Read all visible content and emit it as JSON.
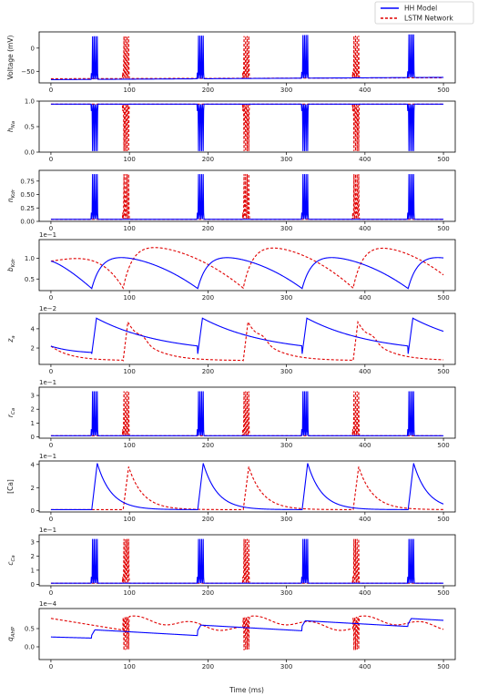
{
  "chart_data": {
    "type": "line",
    "xlabel": "Time (ms)",
    "xlim": [
      0,
      500
    ],
    "x_ticks": [
      0,
      100,
      200,
      300,
      400,
      500
    ],
    "legend": {
      "placement": "top-right",
      "entries": [
        {
          "name": "HH Model",
          "color": "#0000ff",
          "style": "solid"
        },
        {
          "name": "LSTM Network",
          "color": "#e00000",
          "style": "dashed"
        }
      ]
    },
    "spike_times": {
      "hh": [
        52,
        187,
        320,
        455
      ],
      "lstm": [
        92,
        245,
        385
      ]
    },
    "panels": [
      {
        "id": "voltage",
        "ylabel": "Voltage (mV)",
        "multiplier": "",
        "ylim": [
          -75,
          35
        ],
        "yticks": [
          {
            "v": 0,
            "label": "0"
          },
          {
            "v": -50,
            "label": "−50"
          }
        ],
        "kind": "voltage",
        "hh_base": -68,
        "lstm_base": -66,
        "peak": 25
      },
      {
        "id": "hna",
        "ylabel": "h_Na",
        "ylabel_main": "h",
        "ylabel_sub": "Na",
        "multiplier": "",
        "ylim": [
          0,
          1.0
        ],
        "yticks": [
          {
            "v": 0,
            "label": "0.0"
          },
          {
            "v": 0.5,
            "label": "0.5"
          },
          {
            "v": 1.0,
            "label": "1.0"
          }
        ],
        "kind": "inverted-burst",
        "base": 0.94,
        "trough": 0.02
      },
      {
        "id": "nkdr",
        "ylabel": "n_Kdr",
        "ylabel_main": "n",
        "ylabel_sub": "Kdr",
        "multiplier": "",
        "ylim": [
          0,
          0.95
        ],
        "yticks": [
          {
            "v": 0,
            "label": "0.00"
          },
          {
            "v": 0.25,
            "label": "0.25"
          },
          {
            "v": 0.5,
            "label": "0.50"
          },
          {
            "v": 0.75,
            "label": "0.75"
          }
        ],
        "kind": "burst",
        "base": 0.04,
        "peak": 0.88
      },
      {
        "id": "bkdr",
        "ylabel": "b_Kdr",
        "ylabel_main": "b",
        "ylabel_sub": "Kdr",
        "multiplier": "1e−1",
        "ylim": [
          0.22,
          1.45
        ],
        "yticks": [
          {
            "v": 0.5,
            "label": "0.5"
          },
          {
            "v": 1.0,
            "label": "1.0"
          }
        ],
        "kind": "slow",
        "hh_start": 0.93,
        "hh_peak": 1.1,
        "hh_min": 0.27,
        "lstm_start": 0.93,
        "lstm_peak": 1.35,
        "lstm_min": 0.28
      },
      {
        "id": "za",
        "ylabel": "z_a",
        "ylabel_main": "z",
        "ylabel_sub": "a",
        "multiplier": "1e−2",
        "ylim": [
          0.3,
          5.6
        ],
        "yticks": [
          {
            "v": 2,
            "label": "2"
          },
          {
            "v": 4,
            "label": "4"
          }
        ],
        "kind": "decay",
        "hh_start": 2.2,
        "hh_peak": 5.1,
        "hh_min": 1.4,
        "lstm_start": 2.2,
        "lstm_peak": 4.7,
        "lstm_min": 0.7
      },
      {
        "id": "rca",
        "ylabel": "r_Ca",
        "ylabel_main": "r",
        "ylabel_sub": "Ca",
        "multiplier": "1e−1",
        "ylim": [
          -0.1,
          3.6
        ],
        "yticks": [
          {
            "v": 0,
            "label": "0"
          },
          {
            "v": 1,
            "label": "1"
          },
          {
            "v": 2,
            "label": "2"
          },
          {
            "v": 3,
            "label": "3"
          }
        ],
        "kind": "burst",
        "base": 0.08,
        "peak": 3.3
      },
      {
        "id": "ca",
        "ylabel": "[Ca]",
        "ylabel_main": "[Ca]",
        "ylabel_sub": "",
        "multiplier": "1e−1",
        "ylim": [
          -0.1,
          4.3
        ],
        "yticks": [
          {
            "v": 0,
            "label": "0"
          },
          {
            "v": 2,
            "label": "2"
          },
          {
            "v": 4,
            "label": "4"
          }
        ],
        "kind": "ca",
        "base": 0.1,
        "hh_peak": 4.1,
        "lstm_peak": 3.8
      },
      {
        "id": "cca",
        "ylabel": "c_Ca",
        "ylabel_main": "c",
        "ylabel_sub": "Ca",
        "multiplier": "1e−1",
        "ylim": [
          -0.1,
          3.5
        ],
        "yticks": [
          {
            "v": 0,
            "label": "0"
          },
          {
            "v": 1,
            "label": "1"
          },
          {
            "v": 2,
            "label": "2"
          },
          {
            "v": 3,
            "label": "3"
          }
        ],
        "kind": "burst",
        "base": 0.08,
        "peak": 3.2
      },
      {
        "id": "qahp",
        "ylabel": "q_AHP",
        "ylabel_main": "q",
        "ylabel_sub": "AHP",
        "multiplier": "1e−4",
        "ylim": [
          -0.35,
          1.05
        ],
        "yticks": [
          {
            "v": 0.0,
            "label": "0.0"
          },
          {
            "v": 0.5,
            "label": "0.5"
          }
        ],
        "kind": "qahp"
      }
    ]
  }
}
